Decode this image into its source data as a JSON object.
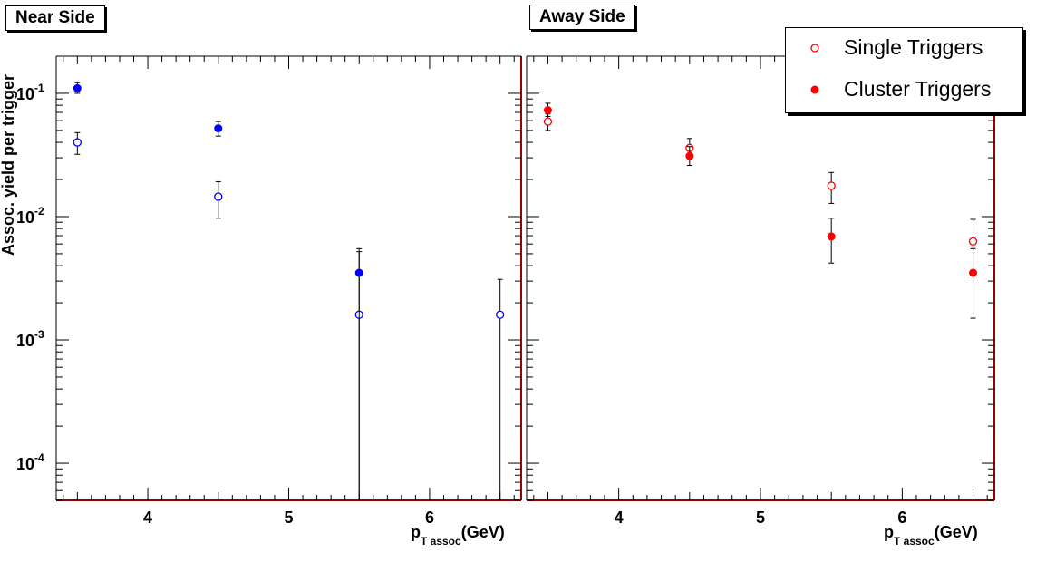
{
  "chart_data": [
    {
      "type": "scatter",
      "title": "Near Side",
      "xlabel": {
        "main": "p",
        "sub": "T assoc",
        "unit": "(GeV)"
      },
      "ylabel": "Assoc. yield per trigger",
      "xlim": [
        3.35,
        6.65
      ],
      "ylim": [
        5e-05,
        0.2
      ],
      "ylog": true,
      "xticks": [
        "4",
        "5",
        "6"
      ],
      "yticks": [
        {
          "base": "10",
          "exp": "-4"
        },
        {
          "base": "10",
          "exp": "-3"
        },
        {
          "base": "10",
          "exp": "-2"
        },
        {
          "base": "10",
          "exp": "-1"
        }
      ],
      "series": [
        {
          "name": "Single Triggers",
          "color": "#0000ff",
          "marker": "open-circle",
          "points": [
            {
              "x": 3.5,
              "y": 0.04,
              "lo": 0.032,
              "hi": 0.048
            },
            {
              "x": 4.5,
              "y": 0.0145,
              "lo": 0.0097,
              "hi": 0.0192
            },
            {
              "x": 5.5,
              "y": 0.0016,
              "lo": 5e-05,
              "hi": 0.0052
            },
            {
              "x": 6.5,
              "y": 0.0016,
              "lo": 5e-05,
              "hi": 0.0031
            }
          ]
        },
        {
          "name": "Cluster Triggers",
          "color": "#0000ff",
          "marker": "filled-circle",
          "points": [
            {
              "x": 3.5,
              "y": 0.11,
              "lo": 0.1,
              "hi": 0.122
            },
            {
              "x": 4.5,
              "y": 0.052,
              "lo": 0.045,
              "hi": 0.059
            },
            {
              "x": 5.5,
              "y": 0.0035,
              "lo": 5e-05,
              "hi": 0.0055
            }
          ]
        }
      ]
    },
    {
      "type": "scatter",
      "title": "Away Side",
      "xlabel": {
        "main": "p",
        "sub": "T assoc",
        "unit": "(GeV)"
      },
      "ylabel": "",
      "xlim": [
        3.35,
        6.65
      ],
      "ylim": [
        5e-05,
        0.2
      ],
      "ylog": true,
      "xticks": [
        "4",
        "5",
        "6"
      ],
      "yticks": [],
      "series": [
        {
          "name": "Single Triggers",
          "color": "#ff0000",
          "marker": "open-circle",
          "points": [
            {
              "x": 3.5,
              "y": 0.059,
              "lo": 0.05,
              "hi": 0.068
            },
            {
              "x": 4.5,
              "y": 0.036,
              "lo": 0.03,
              "hi": 0.043
            },
            {
              "x": 5.5,
              "y": 0.0178,
              "lo": 0.0128,
              "hi": 0.0228
            },
            {
              "x": 6.5,
              "y": 0.0063,
              "lo": 0.0033,
              "hi": 0.0095
            }
          ]
        },
        {
          "name": "Cluster Triggers",
          "color": "#ff0000",
          "marker": "filled-circle",
          "points": [
            {
              "x": 3.5,
              "y": 0.073,
              "lo": 0.065,
              "hi": 0.083
            },
            {
              "x": 4.5,
              "y": 0.031,
              "lo": 0.026,
              "hi": 0.037
            },
            {
              "x": 5.5,
              "y": 0.0069,
              "lo": 0.0042,
              "hi": 0.0097
            },
            {
              "x": 6.5,
              "y": 0.0035,
              "lo": 0.0015,
              "hi": 0.0055
            }
          ]
        }
      ]
    }
  ],
  "legend": {
    "items": [
      {
        "label": "Single Triggers",
        "marker": "open-circle",
        "color": "#ff0000"
      },
      {
        "label": "Cluster Triggers",
        "marker": "filled-circle",
        "color": "#ff0000"
      }
    ]
  },
  "colors": {
    "frame": "#990000",
    "axis_bottom": "#990000",
    "ink": "#000000"
  }
}
